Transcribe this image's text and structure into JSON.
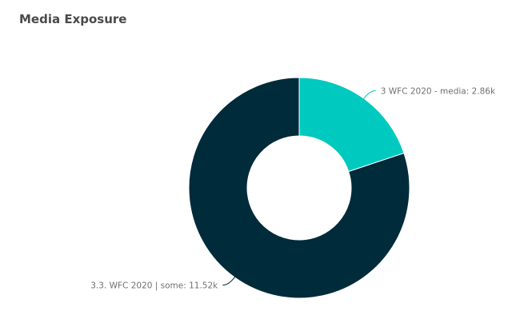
{
  "chart_title": "Media Exposure",
  "chart_data": {
    "type": "pie",
    "style": "donut",
    "title": "Media Exposure",
    "legend": "none",
    "slices": [
      {
        "label": "3.3. WFC 2020 | some",
        "value": 11.52,
        "value_label": "11.52k",
        "color": "#002b3b"
      },
      {
        "label": "3 WFC 2020 - media",
        "value": 2.86,
        "value_label": "2.86k",
        "color": "#00c9bf"
      }
    ]
  }
}
